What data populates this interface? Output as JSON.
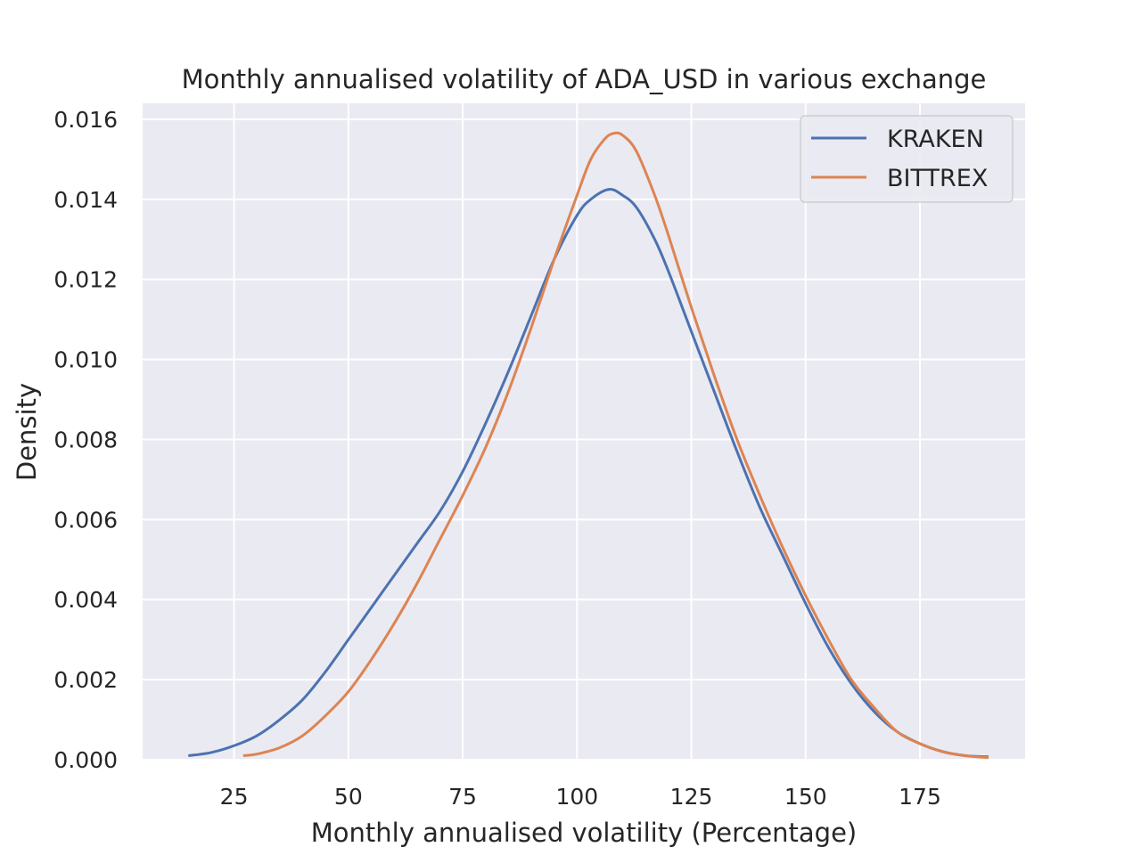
{
  "chart_data": {
    "type": "line",
    "title": "Monthly annualised volatility of ADA_USD in various exchange",
    "xlabel": "Monthly annualised volatility (Percentage)",
    "ylabel": "Density",
    "xlim": [
      5,
      198
    ],
    "ylim": [
      0,
      0.0164
    ],
    "xticks": [
      25,
      50,
      75,
      100,
      125,
      150,
      175
    ],
    "xtick_labels": [
      "25",
      "50",
      "75",
      "100",
      "125",
      "150",
      "175"
    ],
    "yticks": [
      0,
      0.002,
      0.004,
      0.006,
      0.008,
      0.01,
      0.012,
      0.014,
      0.016
    ],
    "ytick_labels": [
      "0.000",
      "0.002",
      "0.004",
      "0.006",
      "0.008",
      "0.010",
      "0.012",
      "0.014",
      "0.016"
    ],
    "grid": true,
    "legend_position": "top-right",
    "series": [
      {
        "name": "KRAKEN",
        "color": "#4c72b0",
        "points": [
          [
            15,
            0.0001
          ],
          [
            20,
            0.00018
          ],
          [
            25,
            0.00035
          ],
          [
            30,
            0.0006
          ],
          [
            35,
            0.001
          ],
          [
            40,
            0.0015
          ],
          [
            45,
            0.0022
          ],
          [
            50,
            0.003
          ],
          [
            55,
            0.0038
          ],
          [
            60,
            0.0046
          ],
          [
            65,
            0.0054
          ],
          [
            70,
            0.0062
          ],
          [
            75,
            0.0072
          ],
          [
            80,
            0.0084
          ],
          [
            85,
            0.0097
          ],
          [
            90,
            0.0111
          ],
          [
            95,
            0.0125
          ],
          [
            100,
            0.0136
          ],
          [
            103,
            0.014
          ],
          [
            107,
            0.01425
          ],
          [
            110,
            0.0141
          ],
          [
            113,
            0.0138
          ],
          [
            117,
            0.013
          ],
          [
            120,
            0.0122
          ],
          [
            125,
            0.0107
          ],
          [
            130,
            0.0092
          ],
          [
            135,
            0.0077
          ],
          [
            140,
            0.0063
          ],
          [
            145,
            0.0051
          ],
          [
            150,
            0.0039
          ],
          [
            155,
            0.0028
          ],
          [
            160,
            0.0019
          ],
          [
            165,
            0.0012
          ],
          [
            170,
            0.0007
          ],
          [
            175,
            0.0004
          ],
          [
            180,
            0.0002
          ],
          [
            185,
            0.0001
          ],
          [
            190,
            7e-05
          ]
        ]
      },
      {
        "name": "BITTREX",
        "color": "#dd8452",
        "points": [
          [
            27,
            0.0001
          ],
          [
            30,
            0.00014
          ],
          [
            35,
            0.0003
          ],
          [
            40,
            0.0006
          ],
          [
            45,
            0.0011
          ],
          [
            50,
            0.0017
          ],
          [
            55,
            0.0025
          ],
          [
            60,
            0.0034
          ],
          [
            65,
            0.0044
          ],
          [
            70,
            0.0055
          ],
          [
            75,
            0.0066
          ],
          [
            80,
            0.0078
          ],
          [
            85,
            0.0092
          ],
          [
            90,
            0.0108
          ],
          [
            95,
            0.0125
          ],
          [
            100,
            0.0141
          ],
          [
            103,
            0.015
          ],
          [
            106,
            0.0155
          ],
          [
            108,
            0.01565
          ],
          [
            110,
            0.0156
          ],
          [
            113,
            0.0152
          ],
          [
            117,
            0.0141
          ],
          [
            120,
            0.0131
          ],
          [
            125,
            0.0113
          ],
          [
            130,
            0.0096
          ],
          [
            135,
            0.008
          ],
          [
            140,
            0.0066
          ],
          [
            145,
            0.0053
          ],
          [
            150,
            0.0041
          ],
          [
            155,
            0.003
          ],
          [
            160,
            0.002
          ],
          [
            165,
            0.0013
          ],
          [
            170,
            0.0007
          ],
          [
            175,
            0.0004
          ],
          [
            180,
            0.0002
          ],
          [
            185,
            0.0001
          ],
          [
            190,
            5e-05
          ]
        ]
      }
    ]
  }
}
